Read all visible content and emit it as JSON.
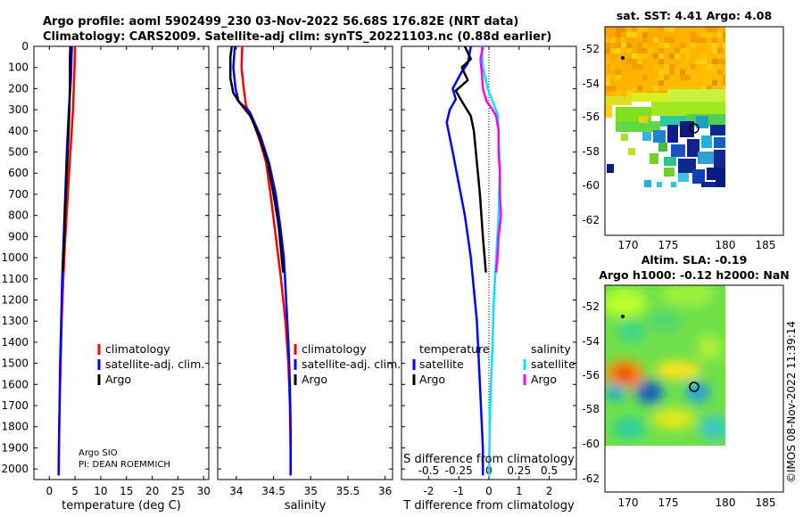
{
  "header": {
    "line1": "Argo profile: aoml 5902499_230 03-Nov-2022 56.68S 176.82E (NRT data)",
    "line2": "Climatology: CARS2009. Satellite-adj clim: synTS_20221103.nc (0.88d earlier)"
  },
  "colors": {
    "clim": "#ff0000",
    "sat": "#0000ff",
    "argo": "#000000",
    "sat_sal": "#00e5ff",
    "argo_sal": "#ff00ff"
  },
  "chart_data": [
    {
      "type": "line",
      "name": "temperature-profile",
      "xlabel": "temperature (deg C)",
      "xlim": [
        -3,
        31
      ],
      "xticks": [
        0,
        5,
        10,
        15,
        20,
        25,
        30
      ],
      "xtick_labels": [
        "0",
        "5",
        "10",
        "15",
        "20",
        "25",
        "30"
      ],
      "ylim": [
        0,
        2050
      ],
      "yticks": [
        0,
        100,
        200,
        300,
        400,
        500,
        600,
        700,
        800,
        900,
        1000,
        1100,
        1200,
        1300,
        1400,
        1500,
        1600,
        1700,
        1800,
        1900,
        2000
      ],
      "ytick_labels": [
        "0",
        "100",
        "200",
        "300",
        "400",
        "500",
        "600",
        "700",
        "800",
        "900",
        "1000",
        "1100",
        "1200",
        "1300",
        "1400",
        "1500",
        "1600",
        "1700",
        "1800",
        "1900",
        "2000"
      ],
      "legend": [
        "climatology",
        "satellite-adj. clim.",
        "Argo"
      ],
      "notes": [
        "Argo SIO",
        "PI: DEAN ROEMMICH"
      ],
      "series": [
        {
          "name": "climatology",
          "color": "clim",
          "points": [
            [
              5.0,
              0
            ],
            [
              4.9,
              100
            ],
            [
              4.6,
              300
            ],
            [
              4.1,
              500
            ],
            [
              3.6,
              700
            ],
            [
              3.1,
              900
            ],
            [
              2.7,
              1100
            ],
            [
              2.4,
              1300
            ],
            [
              2.2,
              1500
            ],
            [
              2.0,
              1700
            ],
            [
              1.9,
              1850
            ],
            [
              1.8,
              2030
            ]
          ]
        },
        {
          "name": "satellite-adj. clim.",
          "color": "sat",
          "points": [
            [
              4.4,
              0
            ],
            [
              4.3,
              50
            ],
            [
              4.2,
              150
            ],
            [
              3.8,
              300
            ],
            [
              3.4,
              500
            ],
            [
              3.1,
              700
            ],
            [
              2.8,
              900
            ],
            [
              2.5,
              1100
            ],
            [
              2.3,
              1300
            ],
            [
              2.1,
              1500
            ],
            [
              2.0,
              1700
            ],
            [
              1.9,
              1850
            ],
            [
              1.8,
              2030
            ]
          ]
        },
        {
          "name": "Argo",
          "color": "argo",
          "points": [
            [
              4.1,
              0
            ],
            [
              4.0,
              50
            ],
            [
              4.0,
              180
            ],
            [
              3.9,
              300
            ],
            [
              3.6,
              500
            ],
            [
              3.2,
              700
            ],
            [
              2.9,
              900
            ],
            [
              2.6,
              1070
            ]
          ]
        }
      ]
    },
    {
      "type": "line",
      "name": "salinity-profile",
      "xlabel": "salinity",
      "xlim": [
        33.75,
        36.1
      ],
      "xticks": [
        34,
        34.5,
        35,
        35.5,
        36
      ],
      "xtick_labels": [
        "34",
        "34.5",
        "35",
        "35.5",
        "36"
      ],
      "ylim": [
        0,
        2050
      ],
      "legend": [
        "climatology",
        "satellite-adj. clim.",
        "Argo"
      ],
      "series": [
        {
          "name": "climatology",
          "color": "clim",
          "points": [
            [
              34.08,
              0
            ],
            [
              34.07,
              100
            ],
            [
              34.1,
              200
            ],
            [
              34.13,
              280
            ],
            [
              34.22,
              350
            ],
            [
              34.32,
              450
            ],
            [
              34.4,
              550
            ],
            [
              34.46,
              700
            ],
            [
              34.53,
              900
            ],
            [
              34.6,
              1100
            ],
            [
              34.66,
              1300
            ],
            [
              34.7,
              1500
            ],
            [
              34.72,
              1700
            ],
            [
              34.73,
              1900
            ],
            [
              34.73,
              2030
            ]
          ]
        },
        {
          "name": "satellite-adj. clim.",
          "color": "sat",
          "points": [
            [
              33.98,
              0
            ],
            [
              33.96,
              100
            ],
            [
              33.99,
              200
            ],
            [
              34.03,
              260
            ],
            [
              34.18,
              310
            ],
            [
              34.32,
              420
            ],
            [
              34.44,
              550
            ],
            [
              34.53,
              700
            ],
            [
              34.59,
              850
            ],
            [
              34.64,
              1000
            ],
            [
              34.67,
              1200
            ],
            [
              34.7,
              1400
            ],
            [
              34.72,
              1600
            ],
            [
              34.73,
              1800
            ],
            [
              34.73,
              2030
            ]
          ]
        },
        {
          "name": "Argo",
          "color": "argo",
          "points": [
            [
              33.94,
              0
            ],
            [
              33.92,
              50
            ],
            [
              33.92,
              150
            ],
            [
              33.96,
              220
            ],
            [
              34.03,
              260
            ],
            [
              34.1,
              290
            ],
            [
              34.19,
              330
            ],
            [
              34.3,
              420
            ],
            [
              34.42,
              550
            ],
            [
              34.5,
              700
            ],
            [
              34.57,
              850
            ],
            [
              34.61,
              1000
            ],
            [
              34.63,
              1070
            ]
          ]
        }
      ]
    },
    {
      "type": "line",
      "name": "difference-profile",
      "xlabel": "T difference from climatology",
      "xlim": [
        -2.9,
        2.9
      ],
      "xticks": [
        -2,
        -1,
        0,
        1,
        2
      ],
      "xtick_labels": [
        "-2",
        "-1",
        "0",
        "1",
        "2"
      ],
      "top_axis_label": "S difference from climatology",
      "top_ticks": [
        -0.5,
        -0.25,
        0,
        0.25,
        0.5
      ],
      "top_tick_labels": [
        "-0.5",
        "-0.25",
        "0",
        "0.25",
        "0.5"
      ],
      "ylim": [
        0,
        2050
      ],
      "legend_temperature": [
        "temperature",
        "satellite",
        "Argo"
      ],
      "legend_salinity": [
        "salinity",
        "satellite",
        "Argo"
      ],
      "series": [
        {
          "name": "T satellite",
          "color": "sat",
          "points": [
            [
              -0.6,
              0
            ],
            [
              -0.7,
              80
            ],
            [
              -0.9,
              120
            ],
            [
              -1.2,
              200
            ],
            [
              -1.1,
              250
            ],
            [
              -1.3,
              300
            ],
            [
              -1.4,
              360
            ],
            [
              -1.2,
              500
            ],
            [
              -1.0,
              650
            ],
            [
              -0.8,
              800
            ],
            [
              -0.6,
              1000
            ],
            [
              -0.4,
              1300
            ],
            [
              -0.3,
              1600
            ],
            [
              -0.2,
              1900
            ],
            [
              -0.2,
              2030
            ]
          ]
        },
        {
          "name": "T Argo",
          "color": "argo",
          "points": [
            [
              -0.8,
              0
            ],
            [
              -0.6,
              60
            ],
            [
              -0.9,
              100
            ],
            [
              -0.7,
              160
            ],
            [
              -1.1,
              210
            ],
            [
              -0.9,
              260
            ],
            [
              -0.6,
              330
            ],
            [
              -0.5,
              400
            ],
            [
              -0.4,
              550
            ],
            [
              -0.3,
              700
            ],
            [
              -0.2,
              900
            ],
            [
              -0.1,
              1070
            ]
          ]
        },
        {
          "name": "S satellite",
          "color": "sat_sal",
          "points": [
            [
              -0.06,
              0
            ],
            [
              -0.05,
              100
            ],
            [
              -0.01,
              200
            ],
            [
              0.03,
              260
            ],
            [
              0.07,
              320
            ],
            [
              0.08,
              400
            ],
            [
              0.09,
              600
            ],
            [
              0.08,
              800
            ],
            [
              0.06,
              1000
            ],
            [
              0.04,
              1200
            ],
            [
              0.03,
              1400
            ],
            [
              0.01,
              1700
            ],
            [
              0,
              2030
            ]
          ]
        },
        {
          "name": "S Argo",
          "color": "argo_sal",
          "points": [
            [
              -0.05,
              0
            ],
            [
              -0.07,
              60
            ],
            [
              -0.06,
              120
            ],
            [
              -0.05,
              200
            ],
            [
              -0.02,
              260
            ],
            [
              0.03,
              300
            ],
            [
              0.06,
              330
            ],
            [
              0.08,
              400
            ],
            [
              0.08,
              500
            ],
            [
              0.09,
              600
            ],
            [
              0.09,
              700
            ],
            [
              0.1,
              800
            ],
            [
              0.08,
              900
            ],
            [
              0.07,
              1000
            ],
            [
              0.06,
              1070
            ]
          ]
        }
      ]
    }
  ],
  "map_top": {
    "title": "sat. SST: 4.41 Argo: 4.08",
    "xticks": [
      "170",
      "175",
      "180",
      "185"
    ],
    "yticks": [
      "-52",
      "-54",
      "-56",
      "-58",
      "-60",
      "-62"
    ]
  },
  "map_bottom": {
    "title1": "Altim. SLA: -0.19",
    "title2": "Argo h1000: -0.12 h2000: NaN",
    "xticks": [
      "170",
      "175",
      "180",
      "185"
    ],
    "yticks": [
      "-52",
      "-54",
      "-56",
      "-58",
      "-60",
      "-62"
    ]
  },
  "stamp": "©IMOS 08-Nov-2022 11:39:14"
}
